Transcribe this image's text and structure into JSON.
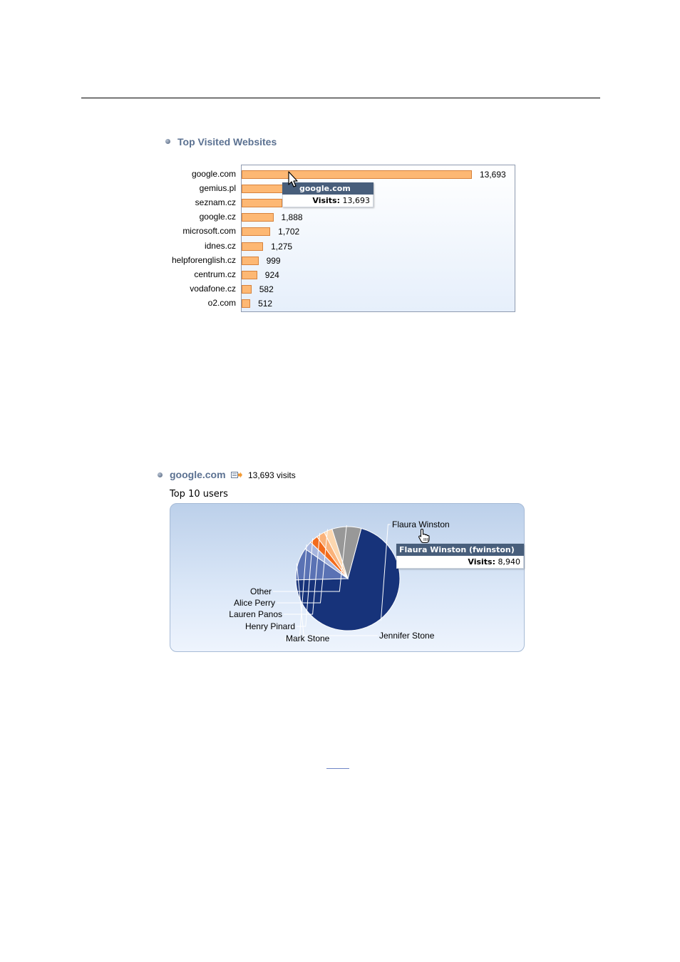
{
  "top_sites": {
    "title": "Top Visited Websites",
    "chart_data": {
      "type": "bar",
      "orientation": "horizontal",
      "categories": [
        "google.com",
        "gemius.pl",
        "seznam.cz",
        "google.cz",
        "microsoft.com",
        "idnes.cz",
        "helpforenglish.cz",
        "centrum.cz",
        "vodafone.cz",
        "o2.com"
      ],
      "values": [
        13693,
        2500,
        2400,
        1888,
        1702,
        1275,
        999,
        924,
        582,
        512
      ],
      "value_labels": [
        "13,693",
        "",
        "",
        "1,888",
        "1,702",
        "1,275",
        "999",
        "924",
        "582",
        "512"
      ],
      "xlim": [
        0,
        15000
      ],
      "bar_color": "#fdb874",
      "bar_border": "#d7823c"
    },
    "tooltip": {
      "title": "google.com",
      "label": "Visits:",
      "value": "13,693"
    }
  },
  "site_detail": {
    "site_link": "google.com",
    "visits_text": "13,693 visits",
    "subtitle": "Top 10 users",
    "chart_data": {
      "type": "pie",
      "slices": [
        {
          "name": "Flaura Winston",
          "value": 8940,
          "color": "#17337a"
        },
        {
          "name": "Jennifer Stone",
          "value": 1280,
          "color": "#5a72b4"
        },
        {
          "name": "Mark Stone",
          "value": 330,
          "color": "#a7b5de"
        },
        {
          "name": "Henry Pinard",
          "value": 330,
          "color": "#f26b1d"
        },
        {
          "name": "Lauren Panos",
          "value": 330,
          "color": "#fab27a"
        },
        {
          "name": "Alice Perry",
          "value": 330,
          "color": "#fcd7b0"
        },
        {
          "name": "Other",
          "value": 1150,
          "color": "#989898"
        }
      ]
    },
    "tooltip": {
      "title": "Flaura Winston (fwinston)",
      "label": "Visits:",
      "value": "8,940"
    }
  }
}
